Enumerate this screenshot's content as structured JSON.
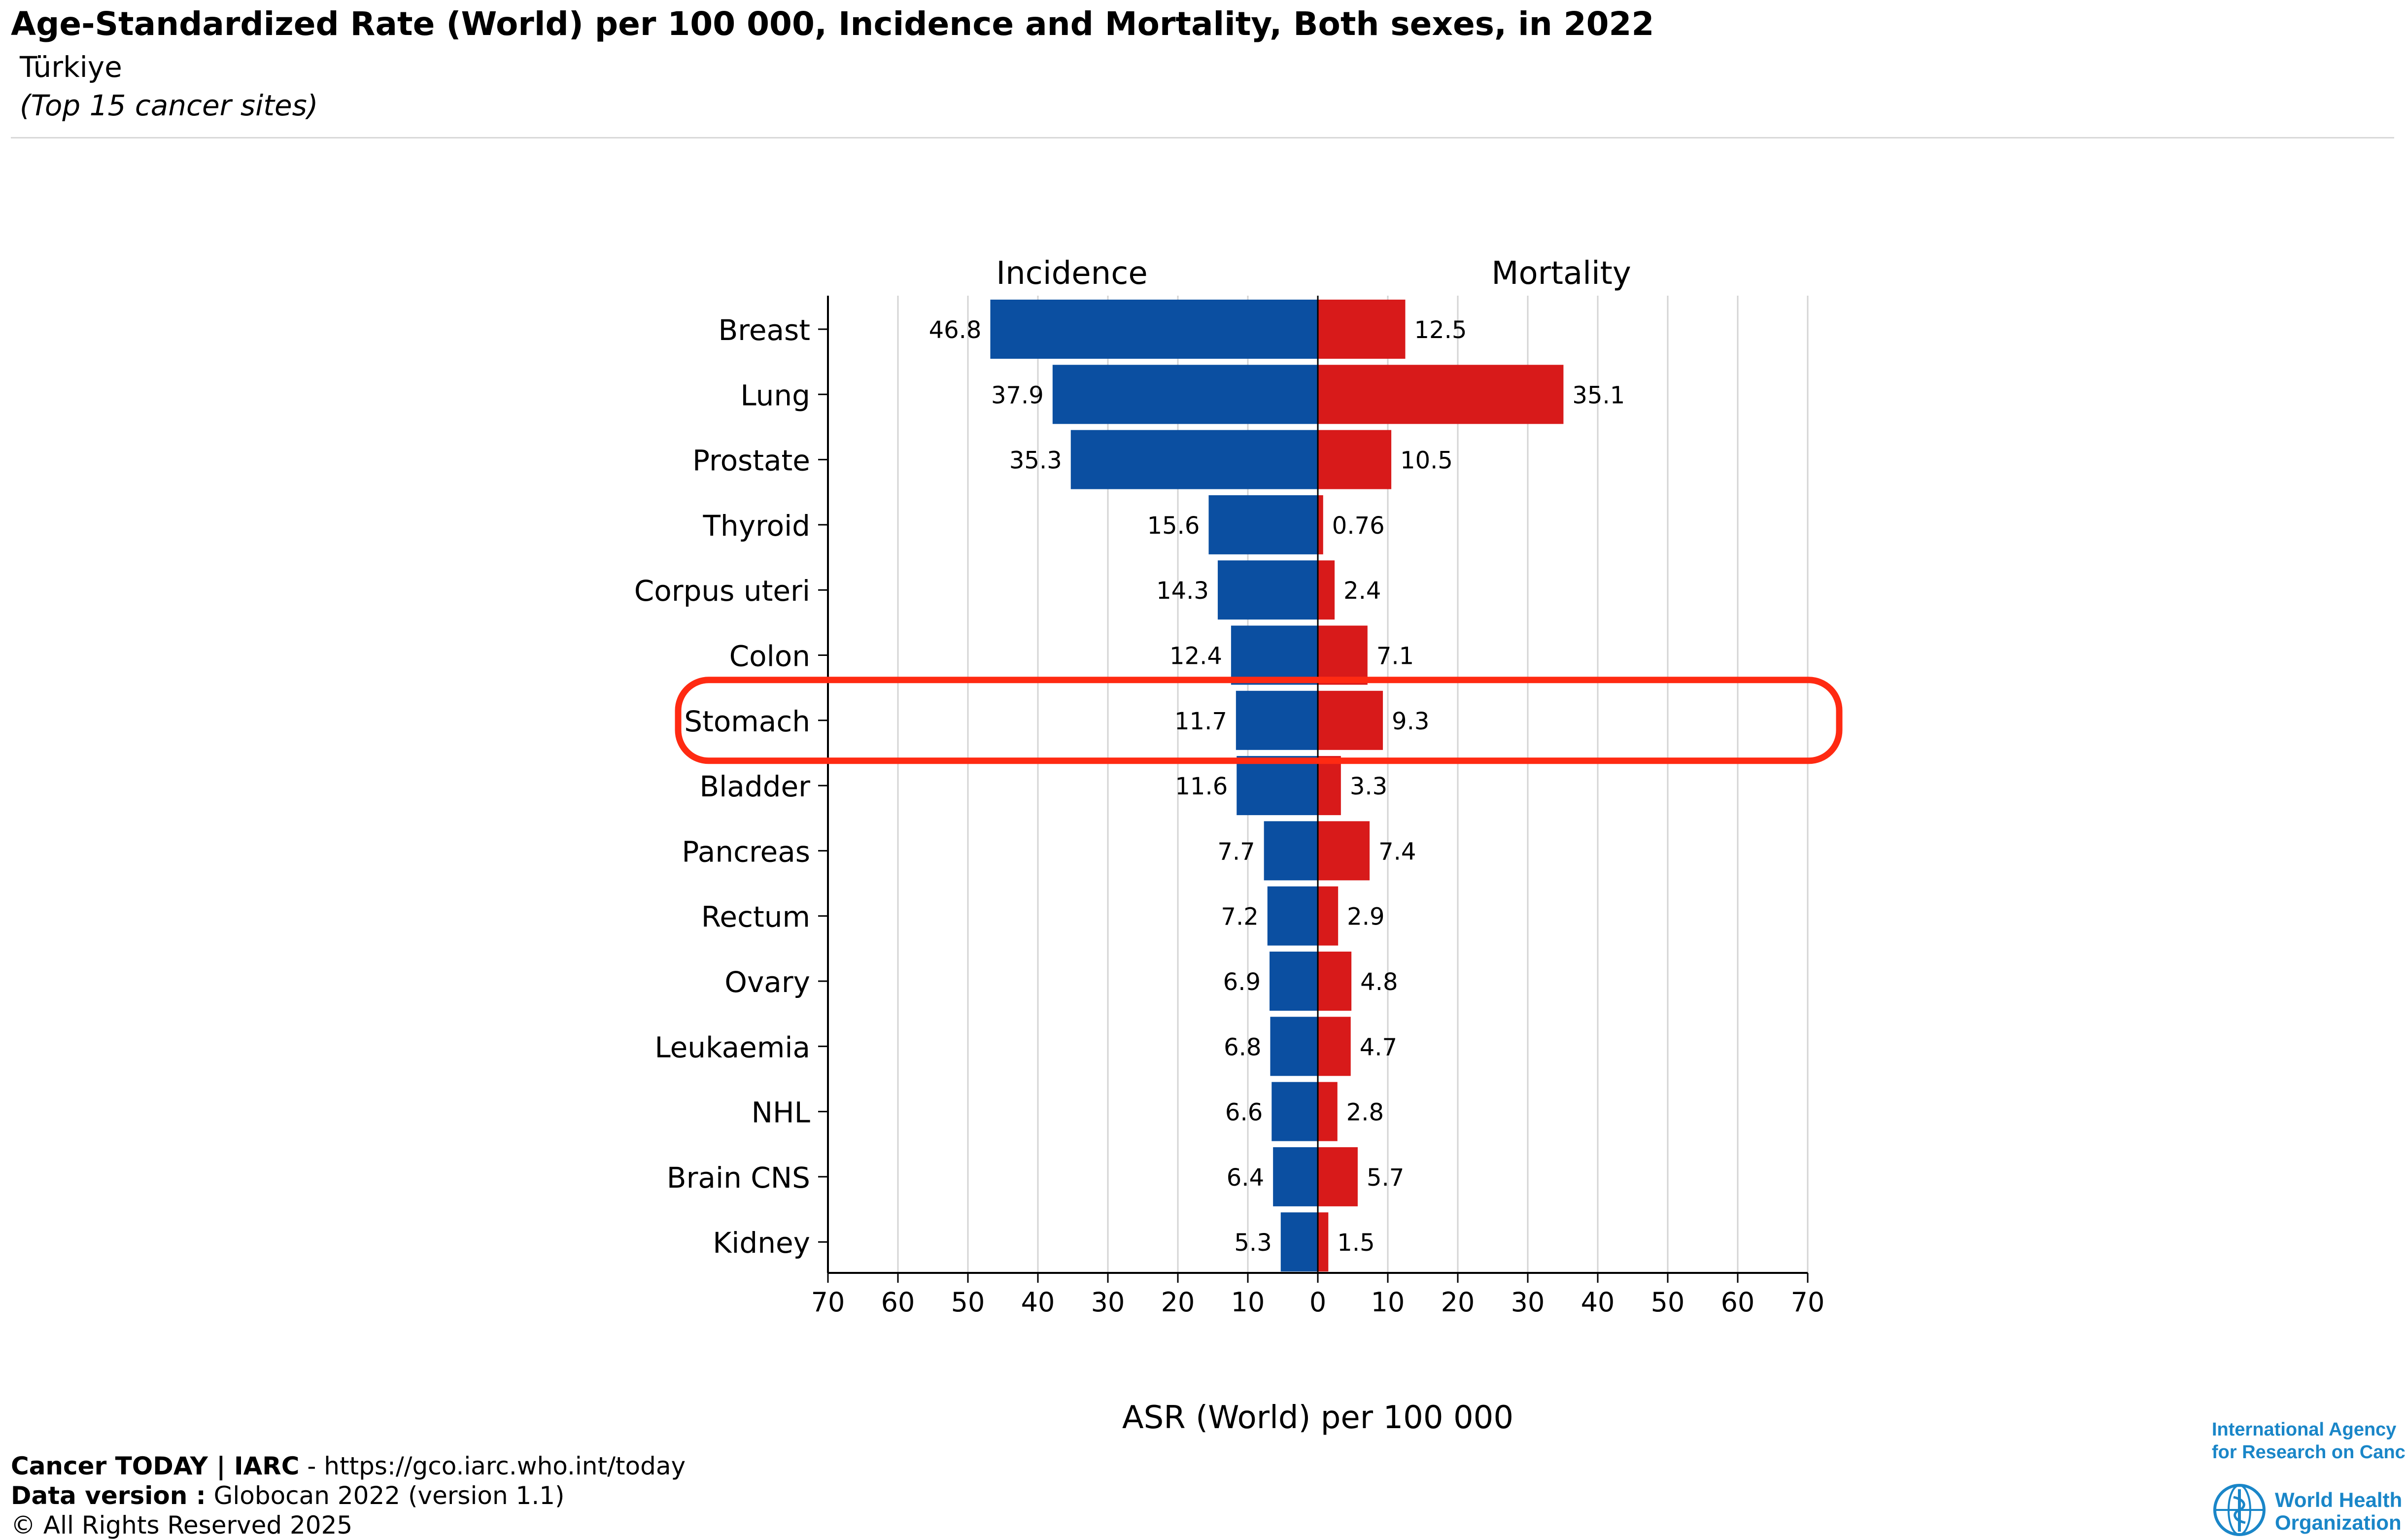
{
  "header": {
    "title": "Age-Standardized Rate (World) per 100 000, Incidence and Mortality, Both sexes, in 2022",
    "subtitle": "Türkiye",
    "note": "(Top 15 cancer sites)"
  },
  "chart_data": {
    "type": "bar",
    "orientation": "horizontal-butterfly",
    "categories": [
      "Breast",
      "Lung",
      "Prostate",
      "Thyroid",
      "Corpus uteri",
      "Colon",
      "Stomach",
      "Bladder",
      "Pancreas",
      "Rectum",
      "Ovary",
      "Leukaemia",
      "NHL",
      "Brain CNS",
      "Kidney"
    ],
    "series": [
      {
        "name": "Incidence",
        "color": "#0b4fa1",
        "values": [
          46.8,
          37.9,
          35.3,
          15.6,
          14.3,
          12.4,
          11.7,
          11.6,
          7.7,
          7.2,
          6.9,
          6.8,
          6.6,
          6.4,
          5.3
        ],
        "labels": [
          "46.8",
          "37.9",
          "35.3",
          "15.6",
          "14.3",
          "12.4",
          "11.7",
          "11.6",
          "7.7",
          "7.2",
          "6.9",
          "6.8",
          "6.6",
          "6.4",
          "5.3"
        ]
      },
      {
        "name": "Mortality",
        "color": "#d81a1a",
        "values": [
          12.5,
          35.1,
          10.5,
          0.76,
          2.4,
          7.1,
          9.3,
          3.3,
          7.4,
          2.9,
          4.8,
          4.7,
          2.8,
          5.7,
          1.5
        ],
        "labels": [
          "12.5",
          "35.1",
          "10.5",
          "0.76",
          "2.4",
          "7.1",
          "9.3",
          "3.3",
          "7.4",
          "2.9",
          "4.8",
          "4.7",
          "2.8",
          "5.7",
          "1.5"
        ]
      }
    ],
    "xlim": [
      0,
      70
    ],
    "xticks": [
      "70",
      "60",
      "50",
      "40",
      "30",
      "20",
      "10",
      "0",
      "10",
      "20",
      "30",
      "40",
      "50",
      "60",
      "70"
    ],
    "xlabel": "ASR (World) per 100 000",
    "grid": true,
    "highlight": {
      "category": "Stomach",
      "color": "#ff2a12"
    }
  },
  "footer": {
    "line1_bold": "Cancer TODAY | IARC",
    "line1_rest": " - https://gco.iarc.who.int/today",
    "line2_bold": "Data version :",
    "line2_rest": " Globocan 2022 (version 1.1)",
    "line3": "© All Rights Reserved 2025"
  },
  "logo": {
    "iarc_line1": "International Agency",
    "iarc_line2": "for Research on Cancer",
    "who_line1": "World Health",
    "who_line2": "Organization"
  }
}
